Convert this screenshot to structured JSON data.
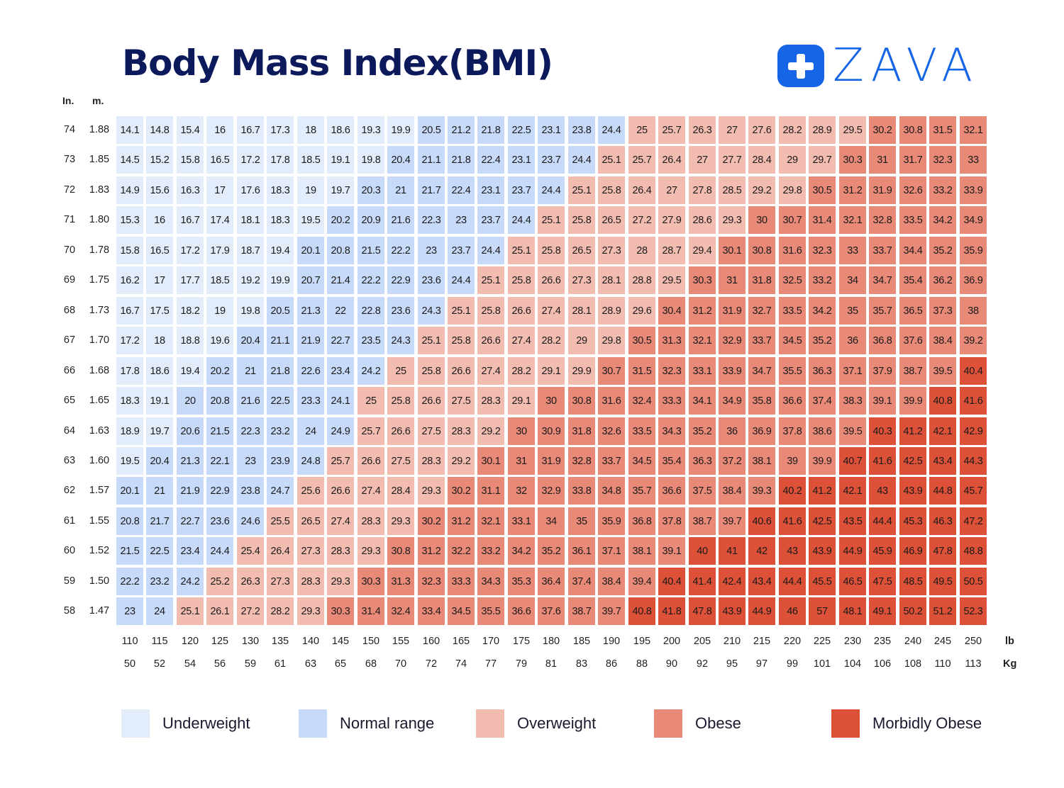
{
  "header": {
    "title": "Body Mass Index(BMI)",
    "logo_text": "ZAVA"
  },
  "chart_data": {
    "type": "heatmap",
    "title": "Body Mass Index(BMI)",
    "row_headers": {
      "inches": "In.",
      "meters": "m."
    },
    "x_units": {
      "pounds": "lb",
      "kilograms": "Kg"
    },
    "heights_in": [
      "74",
      "73",
      "72",
      "71",
      "70",
      "69",
      "68",
      "67",
      "66",
      "65",
      "64",
      "63",
      "62",
      "61",
      "60",
      "59",
      "58"
    ],
    "heights_m": [
      "1.88",
      "1.85",
      "1.83",
      "1.80",
      "1.78",
      "1.75",
      "1.73",
      "1.70",
      "1.68",
      "1.65",
      "1.63",
      "1.60",
      "1.57",
      "1.55",
      "1.52",
      "1.50",
      "1.47"
    ],
    "weights_lb": [
      "110",
      "115",
      "120",
      "125",
      "130",
      "135",
      "140",
      "145",
      "150",
      "155",
      "160",
      "165",
      "170",
      "175",
      "180",
      "185",
      "190",
      "195",
      "200",
      "205",
      "210",
      "215",
      "220",
      "225",
      "230",
      "235",
      "240",
      "245",
      "250"
    ],
    "weights_kg": [
      "50",
      "52",
      "54",
      "56",
      "59",
      "61",
      "63",
      "65",
      "68",
      "70",
      "72",
      "74",
      "77",
      "79",
      "81",
      "83",
      "86",
      "88",
      "90",
      "92",
      "95",
      "97",
      "99",
      "101",
      "104",
      "106",
      "108",
      "110",
      "113"
    ],
    "values": [
      [
        "14.1",
        "14.8",
        "15.4",
        "16",
        "16.7",
        "17.3",
        "18",
        "18.6",
        "19.3",
        "19.9",
        "20.5",
        "21.2",
        "21.8",
        "22.5",
        "23.1",
        "23.8",
        "24.4",
        "25",
        "25.7",
        "26.3",
        "27",
        "27.6",
        "28.2",
        "28.9",
        "29.5",
        "30.2",
        "30.8",
        "31.5",
        "32.1"
      ],
      [
        "14.5",
        "15.2",
        "15.8",
        "16.5",
        "17.2",
        "17.8",
        "18.5",
        "19.1",
        "19.8",
        "20.4",
        "21.1",
        "21.8",
        "22.4",
        "23.1",
        "23.7",
        "24.4",
        "25.1",
        "25.7",
        "26.4",
        "27",
        "27.7",
        "28.4",
        "29",
        "29.7",
        "30.3",
        "31",
        "31.7",
        "32.3",
        "33"
      ],
      [
        "14.9",
        "15.6",
        "16.3",
        "17",
        "17.6",
        "18.3",
        "19",
        "19.7",
        "20.3",
        "21",
        "21.7",
        "22.4",
        "23.1",
        "23.7",
        "24.4",
        "25.1",
        "25.8",
        "26.4",
        "27",
        "27.8",
        "28.5",
        "29.2",
        "29.8",
        "30.5",
        "31.2",
        "31.9",
        "32.6",
        "33.2",
        "33.9"
      ],
      [
        "15.3",
        "16",
        "16.7",
        "17.4",
        "18.1",
        "18.3",
        "19.5",
        "20.2",
        "20.9",
        "21.6",
        "22.3",
        "23",
        "23.7",
        "24.4",
        "25.1",
        "25.8",
        "26.5",
        "27.2",
        "27.9",
        "28.6",
        "29.3",
        "30",
        "30.7",
        "31.4",
        "32.1",
        "32.8",
        "33.5",
        "34.2",
        "34.9"
      ],
      [
        "15.8",
        "16.5",
        "17.2",
        "17.9",
        "18.7",
        "19.4",
        "20.1",
        "20.8",
        "21.5",
        "22.2",
        "23",
        "23.7",
        "24.4",
        "25.1",
        "25.8",
        "26.5",
        "27.3",
        "28",
        "28.7",
        "29.4",
        "30.1",
        "30.8",
        "31.6",
        "32.3",
        "33",
        "33.7",
        "34.4",
        "35.2",
        "35.9"
      ],
      [
        "16.2",
        "17",
        "17.7",
        "18.5",
        "19.2",
        "19.9",
        "20.7",
        "21.4",
        "22.2",
        "22.9",
        "23.6",
        "24.4",
        "25.1",
        "25.8",
        "26.6",
        "27.3",
        "28.1",
        "28.8",
        "29.5",
        "30.3",
        "31",
        "31.8",
        "32.5",
        "33.2",
        "34",
        "34.7",
        "35.4",
        "36.2",
        "36.9"
      ],
      [
        "16.7",
        "17.5",
        "18.2",
        "19",
        "19.8",
        "20.5",
        "21.3",
        "22",
        "22.8",
        "23.6",
        "24.3",
        "25.1",
        "25.8",
        "26.6",
        "27.4",
        "28.1",
        "28.9",
        "29.6",
        "30.4",
        "31.2",
        "31.9",
        "32.7",
        "33.5",
        "34.2",
        "35",
        "35.7",
        "36.5",
        "37.3",
        "38"
      ],
      [
        "17.2",
        "18",
        "18.8",
        "19.6",
        "20.4",
        "21.1",
        "21.9",
        "22.7",
        "23.5",
        "24.3",
        "25.1",
        "25.8",
        "26.6",
        "27.4",
        "28.2",
        "29",
        "29.8",
        "30.5",
        "31.3",
        "32.1",
        "32.9",
        "33.7",
        "34.5",
        "35.2",
        "36",
        "36.8",
        "37.6",
        "38.4",
        "39.2"
      ],
      [
        "17.8",
        "18.6",
        "19.4",
        "20.2",
        "21",
        "21.8",
        "22.6",
        "23.4",
        "24.2",
        "25",
        "25.8",
        "26.6",
        "27.4",
        "28.2",
        "29.1",
        "29.9",
        "30.7",
        "31.5",
        "32.3",
        "33.1",
        "33.9",
        "34.7",
        "35.5",
        "36.3",
        "37.1",
        "37.9",
        "38.7",
        "39.5",
        "40.4"
      ],
      [
        "18.3",
        "19.1",
        "20",
        "20.8",
        "21.6",
        "22.5",
        "23.3",
        "24.1",
        "25",
        "25.8",
        "26.6",
        "27.5",
        "28.3",
        "29.1",
        "30",
        "30.8",
        "31.6",
        "32.4",
        "33.3",
        "34.1",
        "34.9",
        "35.8",
        "36.6",
        "37.4",
        "38.3",
        "39.1",
        "39.9",
        "40.8",
        "41.6"
      ],
      [
        "18.9",
        "19.7",
        "20.6",
        "21.5",
        "22.3",
        "23.2",
        "24",
        "24.9",
        "25.7",
        "26.6",
        "27.5",
        "28.3",
        "29.2",
        "30",
        "30.9",
        "31.8",
        "32.6",
        "33.5",
        "34.3",
        "35.2",
        "36",
        "36.9",
        "37.8",
        "38.6",
        "39.5",
        "40.3",
        "41.2",
        "42.1",
        "42.9"
      ],
      [
        "19.5",
        "20.4",
        "21.3",
        "22.1",
        "23",
        "23.9",
        "24.8",
        "25.7",
        "26.6",
        "27.5",
        "28.3",
        "29.2",
        "30.1",
        "31",
        "31.9",
        "32.8",
        "33.7",
        "34.5",
        "35.4",
        "36.3",
        "37.2",
        "38.1",
        "39",
        "39.9",
        "40.7",
        "41.6",
        "42.5",
        "43.4",
        "44.3"
      ],
      [
        "20.1",
        "21",
        "21.9",
        "22.9",
        "23.8",
        "24.7",
        "25.6",
        "26.6",
        "27.4",
        "28.4",
        "29.3",
        "30.2",
        "31.1",
        "32",
        "32.9",
        "33.8",
        "34.8",
        "35.7",
        "36.6",
        "37.5",
        "38.4",
        "39.3",
        "40.2",
        "41.2",
        "42.1",
        "43",
        "43.9",
        "44.8",
        "45.7"
      ],
      [
        "20.8",
        "21.7",
        "22.7",
        "23.6",
        "24.6",
        "25.5",
        "26.5",
        "27.4",
        "28.3",
        "29.3",
        "30.2",
        "31.2",
        "32.1",
        "33.1",
        "34",
        "35",
        "35.9",
        "36.8",
        "37.8",
        "38.7",
        "39.7",
        "40.6",
        "41.6",
        "42.5",
        "43.5",
        "44.4",
        "45.3",
        "46.3",
        "47.2"
      ],
      [
        "21.5",
        "22.5",
        "23.4",
        "24.4",
        "25.4",
        "26.4",
        "27.3",
        "28.3",
        "29.3",
        "30.8",
        "31.2",
        "32.2",
        "33.2",
        "34.2",
        "35.2",
        "36.1",
        "37.1",
        "38.1",
        "39.1",
        "40",
        "41",
        "42",
        "43",
        "43.9",
        "44.9",
        "45.9",
        "46.9",
        "47.8",
        "48.8"
      ],
      [
        "22.2",
        "23.2",
        "24.2",
        "25.2",
        "26.3",
        "27.3",
        "28.3",
        "29.3",
        "30.3",
        "31.3",
        "32.3",
        "33.3",
        "34.3",
        "35.3",
        "36.4",
        "37.4",
        "38.4",
        "39.4",
        "40.4",
        "41.4",
        "42.4",
        "43.4",
        "44.4",
        "45.5",
        "46.5",
        "47.5",
        "48.5",
        "49.5",
        "50.5"
      ],
      [
        "23",
        "24",
        "25.1",
        "26.1",
        "27.2",
        "28.2",
        "29.3",
        "30.3",
        "31.4",
        "32.4",
        "33.4",
        "34.5",
        "35.5",
        "36.6",
        "37.6",
        "38.7",
        "39.7",
        "40.8",
        "41.8",
        "47.8",
        "43.9",
        "44.9",
        "46",
        "57",
        "48.1",
        "49.1",
        "50.2",
        "51.2",
        "52.3"
      ]
    ],
    "categories": [
      {
        "name": "Underweight",
        "color": "#e3ecfb",
        "range": [
          0,
          20
        ]
      },
      {
        "name": "Normal range",
        "color": "#c8dafa",
        "range": [
          20,
          25
        ]
      },
      {
        "name": "Overweight",
        "color": "#f3bcb1",
        "range": [
          25,
          30
        ]
      },
      {
        "name": "Obese",
        "color": "#e98a78",
        "range": [
          30,
          40
        ]
      },
      {
        "name": "Morbidly Obese",
        "color": "#dd5138",
        "range": [
          40,
          100
        ]
      }
    ]
  }
}
